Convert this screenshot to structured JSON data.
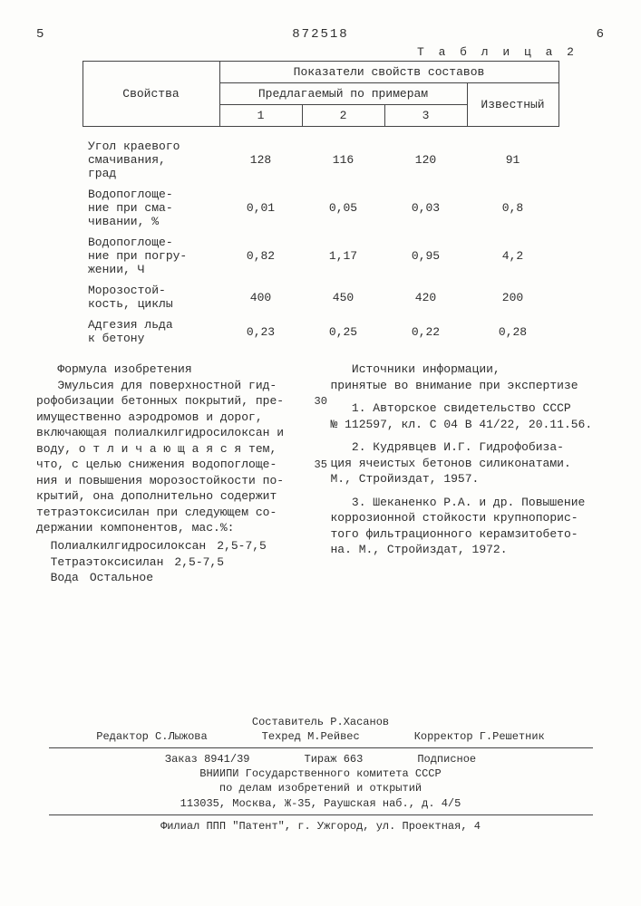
{
  "header": {
    "left_col": "5",
    "patent_no": "872518",
    "right_col": "6"
  },
  "table": {
    "label": "Т а б л и ц а  2",
    "col_properties": "Свойства",
    "col_group": "Показатели свойств составов",
    "col_proposed": "Предлагаемый по примерам",
    "col_known": "Известный",
    "sub1": "1",
    "sub2": "2",
    "sub3": "3",
    "rows": [
      {
        "name": "Угол краевого\nсмачивания,\nград",
        "v1": "128",
        "v2": "116",
        "v3": "120",
        "v4": "91"
      },
      {
        "name": "Водопоглоще-\nние при сма-\nчивании, %",
        "v1": "0,01",
        "v2": "0,05",
        "v3": "0,03",
        "v4": "0,8"
      },
      {
        "name": "Водопоглоще-\nние при погру-\nжении, Ч",
        "v1": "0,82",
        "v2": "1,17",
        "v3": "0,95",
        "v4": "4,2"
      },
      {
        "name": "Морозостой-\nкость, циклы",
        "v1": "400",
        "v2": "450",
        "v3": "420",
        "v4": "200"
      },
      {
        "name": "Адгезия льда\nк бетону",
        "v1": "0,23",
        "v2": "0,25",
        "v3": "0,22",
        "v4": "0,28"
      }
    ]
  },
  "left_col": {
    "formula_title": "Формула изобретения",
    "body": "Эмульсия для поверхностной гид-\nрофобизации бетонных покрытий, пре-\nимущественно аэродромов и дорог,\nвключающая полиалкилгидросилоксан и\nводу,  о т л и ч а ю щ а я с я  тем,\nчто, с целью снижения водопоглоще-\nния и повышения морозостойкости по-\nкрытий, она дополнительно содержит\nтетраэтоксисилан при следующем со-\nдержании компонентов, мас.%:",
    "comps": [
      {
        "name": "Полиалкилгидросилоксан",
        "val": "2,5-7,5"
      },
      {
        "name": "Тетраэтоксисилан",
        "val": "2,5-7,5"
      },
      {
        "name": "Вода",
        "val": "Остальное"
      }
    ]
  },
  "right_col": {
    "sources_title": "Источники информации,\nпринятые во внимание при экспертизе",
    "items": [
      "1. Авторское свидетельство СССР\n№ 112597, кл. С 04 В 41/22, 20.11.56.",
      "2. Кудрявцев И.Г. Гидрофобиза-\nция ячеистых бетонов силиконатами.\nМ., Стройиздат, 1957.",
      "3. Шеканенко Р.А. и др. Повышение\nкоррозионной стойкости крупнопорис-\nтого фильтрационного керамзитобето-\nна. М., Стройиздат, 1972."
    ],
    "margin_30": "30",
    "margin_35": "35"
  },
  "footer": {
    "compiler": "Составитель Р.Хасанов",
    "editor": "Редактор С.Лыжова",
    "techred": "Техред М.Рейвес",
    "corrector": "Корректор Г.Решетник",
    "order": "Заказ 8941/39",
    "tirage": "Тираж 663",
    "subscribe": "Подписное",
    "org1": "ВНИИПИ Государственного комитета СССР",
    "org2": "по делам изобретений и открытий",
    "addr": "113035, Москва, Ж-35, Раушская наб., д. 4/5",
    "branch": "Филиал ППП \"Патент\", г. Ужгород, ул. Проектная, 4"
  }
}
